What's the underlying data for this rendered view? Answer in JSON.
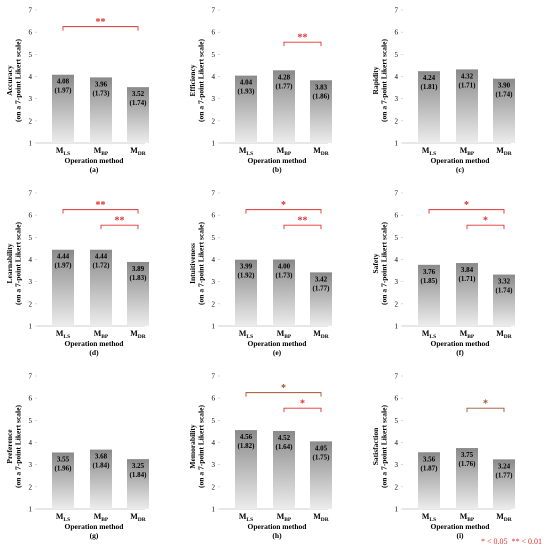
{
  "footnote": {
    "single": "* < 0.05",
    "double": "** < 0.01"
  },
  "common": {
    "y_ticks": [
      "1",
      "2",
      "3",
      "4",
      "5",
      "6",
      "7"
    ],
    "categories": [
      {
        "main": "M",
        "sub": "LS"
      },
      {
        "main": "M",
        "sub": "BP"
      },
      {
        "main": "M",
        "sub": "DR"
      }
    ],
    "xlabel": "Operation method",
    "ylabel_line2": "(on a 7-point Likert scale)",
    "colors": {
      "bar_top": "#8a8a8a",
      "bar_bottom": "#ececec",
      "sig_red": "#e0312f",
      "sig_brown": "#a0522d"
    }
  },
  "chart_data": [
    {
      "type": "bar",
      "panel": "(a)",
      "ylabel": "Accuracy",
      "ylim": [
        1,
        7
      ],
      "values": [
        4.08,
        3.96,
        3.52
      ],
      "sd": [
        1.97,
        1.73,
        1.74
      ],
      "value_labels": [
        "4.08",
        "3.96",
        "3.52"
      ],
      "sd_labels": [
        "(1.97)",
        "(1.73)",
        "(1.74)"
      ],
      "significance": [
        {
          "from": 0,
          "to": 2,
          "label": "**",
          "color": "red"
        }
      ]
    },
    {
      "type": "bar",
      "panel": "(b)",
      "ylabel": "Efficiency",
      "ylim": [
        1,
        7
      ],
      "values": [
        4.04,
        4.28,
        3.83
      ],
      "sd": [
        1.93,
        1.77,
        1.86
      ],
      "value_labels": [
        "4.04",
        "4.28",
        "3.83"
      ],
      "sd_labels": [
        "(1.93)",
        "(1.77)",
        "(1.86)"
      ],
      "significance": [
        {
          "from": 1,
          "to": 2,
          "label": "**",
          "color": "red"
        }
      ]
    },
    {
      "type": "bar",
      "panel": "(c)",
      "ylabel": "Rapidity",
      "ylim": [
        1,
        7
      ],
      "values": [
        4.24,
        4.32,
        3.9
      ],
      "sd": [
        1.81,
        1.71,
        1.74
      ],
      "value_labels": [
        "4.24",
        "4.32",
        "3.90"
      ],
      "sd_labels": [
        "(1.81)",
        "(1.71)",
        "(1.74)"
      ],
      "significance": []
    },
    {
      "type": "bar",
      "panel": "(d)",
      "ylabel": "Learnability",
      "ylim": [
        1,
        7
      ],
      "values": [
        4.44,
        4.44,
        3.89
      ],
      "sd": [
        1.97,
        1.72,
        1.83
      ],
      "value_labels": [
        "4.44",
        "4.44",
        "3.89"
      ],
      "sd_labels": [
        "(1.97)",
        "(1.72)",
        "(1.83)"
      ],
      "significance": [
        {
          "from": 0,
          "to": 2,
          "label": "**",
          "color": "red"
        },
        {
          "from": 1,
          "to": 2,
          "label": "**",
          "color": "red"
        }
      ]
    },
    {
      "type": "bar",
      "panel": "(e)",
      "ylabel": "Intuitiveness",
      "ylim": [
        1,
        7
      ],
      "values": [
        3.99,
        4.0,
        3.42
      ],
      "sd": [
        1.92,
        1.73,
        1.77
      ],
      "value_labels": [
        "3.99",
        "4.00",
        "3.42"
      ],
      "sd_labels": [
        "(1.92)",
        "(1.73)",
        "(1.77)"
      ],
      "significance": [
        {
          "from": 0,
          "to": 2,
          "label": "*",
          "color": "red"
        },
        {
          "from": 1,
          "to": 2,
          "label": "**",
          "color": "red"
        }
      ]
    },
    {
      "type": "bar",
      "panel": "(f)",
      "ylabel": "Safety",
      "ylim": [
        1,
        7
      ],
      "values": [
        3.76,
        3.84,
        3.32
      ],
      "sd": [
        1.85,
        1.71,
        1.74
      ],
      "value_labels": [
        "3.76",
        "3.84",
        "3.32"
      ],
      "sd_labels": [
        "(1.85)",
        "(1.71)",
        "(1.74)"
      ],
      "significance": [
        {
          "from": 0,
          "to": 2,
          "label": "*",
          "color": "red"
        },
        {
          "from": 1,
          "to": 2,
          "label": "*",
          "color": "red"
        }
      ]
    },
    {
      "type": "bar",
      "panel": "(g)",
      "ylabel": "Preference",
      "ylim": [
        1,
        7
      ],
      "values": [
        3.55,
        3.68,
        3.25
      ],
      "sd": [
        1.96,
        1.84,
        1.84
      ],
      "value_labels": [
        "3.55",
        "3.68",
        "3.25"
      ],
      "sd_labels": [
        "(1.96)",
        "(1.84)",
        "(1.84)"
      ],
      "significance": []
    },
    {
      "type": "bar",
      "panel": "(h)",
      "ylabel": "Memorability",
      "ylim": [
        1,
        7
      ],
      "values": [
        4.56,
        4.52,
        4.05
      ],
      "sd": [
        1.82,
        1.64,
        1.75
      ],
      "value_labels": [
        "4.56",
        "4.52",
        "4.05"
      ],
      "sd_labels": [
        "(1.82)",
        "(1.64)",
        "(1.75)"
      ],
      "significance": [
        {
          "from": 0,
          "to": 2,
          "label": "*",
          "color": "brown"
        },
        {
          "from": 1,
          "to": 2,
          "label": "*",
          "color": "red"
        }
      ]
    },
    {
      "type": "bar",
      "panel": "(i)",
      "ylabel": "Satisfaction",
      "ylim": [
        1,
        7
      ],
      "values": [
        3.56,
        3.75,
        3.24
      ],
      "sd": [
        1.87,
        1.76,
        1.77
      ],
      "value_labels": [
        "3.56",
        "3.75",
        "3.24"
      ],
      "sd_labels": [
        "(1.87)",
        "(1.76)",
        "(1.77)"
      ],
      "significance": [
        {
          "from": 1,
          "to": 2,
          "label": "*",
          "color": "brown"
        }
      ]
    }
  ]
}
